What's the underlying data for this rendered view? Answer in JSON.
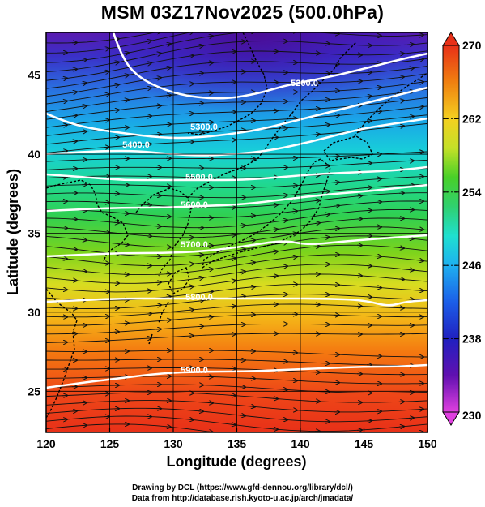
{
  "title": "MSM 03Z17Nov2025 (500.0hPa)",
  "map": {
    "lon_range": [
      120,
      150
    ],
    "lat_range": [
      22.4,
      47.7
    ],
    "x_ticks": [
      "120",
      "125",
      "130",
      "135",
      "140",
      "145",
      "150"
    ],
    "y_ticks": [
      "25",
      "30",
      "35",
      "40",
      "45"
    ],
    "xlabel": "Longitude (degrees)",
    "ylabel": "Latitude (degrees)",
    "field": "temperature (shaded), geopotential height (white contours), wind streamlines",
    "contours": [
      {
        "label": "5200.0",
        "value": 5200
      },
      {
        "label": "5300.0",
        "value": 5300
      },
      {
        "label": "5400.0",
        "value": 5400
      },
      {
        "label": "5500.0",
        "value": 5500
      },
      {
        "label": "5600.0",
        "value": 5600
      },
      {
        "label": "5700.0",
        "value": 5700
      },
      {
        "label": "5800.0",
        "value": 5800
      },
      {
        "label": "5900.0",
        "value": 5900
      }
    ],
    "colors": {
      "contour": "#ffffff",
      "streamline": "#111111",
      "coastline": "#000000",
      "grid": "#000000"
    }
  },
  "colorbar": {
    "min": 230,
    "max": 270,
    "labels": [
      "270",
      "262",
      "254",
      "246",
      "238",
      "230"
    ],
    "colors": [
      "#e040e0",
      "#4010a0",
      "#1c3ad8",
      "#1e9ef0",
      "#1fe0d0",
      "#30d070",
      "#48d028",
      "#c4e028",
      "#f4d020",
      "#f08010",
      "#e83018"
    ]
  },
  "footer": {
    "line1": "Drawing by DCL (https://www.gfd-dennou.org/library/dcl/)",
    "line2": "Data from http://database.rish.kyoto-u.ac.jp/arch/jmadata/"
  }
}
